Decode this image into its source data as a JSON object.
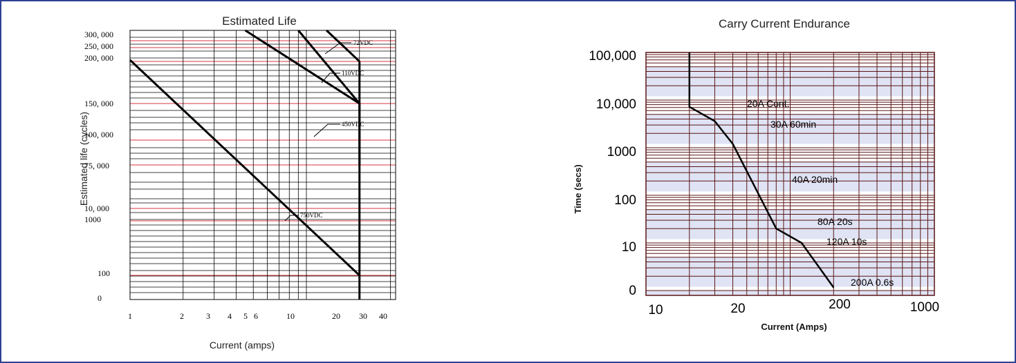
{
  "colors": {
    "frame": "#2e3f93",
    "grid_black": "#000000",
    "grid_red": "#d9343f",
    "grid_dark": "#5a1515",
    "band": "#dfe3f4",
    "curve": "#000000"
  },
  "chart_data": [
    {
      "type": "line",
      "title": "Estimated Life",
      "xlabel": "Current (amps)",
      "ylabel": "Estimated life (cycles)",
      "x_scale": "log",
      "xlim": [
        1,
        50
      ],
      "x_ticks": [
        "1",
        "2",
        "3",
        "4",
        "5",
        "6",
        "10",
        "20",
        "30",
        "40"
      ],
      "y_ticks": [
        "300, 000",
        "250, 000",
        "200, 000",
        "150, 000",
        "100, 000",
        "75, 000",
        "10, 000",
        "1000",
        "100",
        "0"
      ],
      "grid": true,
      "series": [
        {
          "name": "72VDC",
          "x": [
            13,
            20,
            20
          ],
          "y": [
            "300, 000",
            "250, 000",
            "200, 000"
          ]
        },
        {
          "name": "110VDC",
          "x": [
            4.5,
            20,
            20
          ],
          "y": [
            "300, 000",
            "150, 000",
            "75, 000"
          ]
        },
        {
          "name": "450VDC",
          "x": [
            9,
            20,
            20
          ],
          "y": [
            "300, 000",
            "150, 000",
            "75, 000"
          ]
        },
        {
          "name": "750VDC",
          "x": [
            1,
            20,
            20
          ],
          "y": [
            "200, 000",
            "100",
            "0"
          ]
        }
      ]
    },
    {
      "type": "line",
      "title": "Carry Current Endurance",
      "xlabel": "Current (Amps)",
      "ylabel": "Time (secs)",
      "x_scale": "log",
      "y_scale": "log",
      "xlim": [
        10,
        1000
      ],
      "x_ticks": [
        "10",
        "20",
        "200",
        "1000"
      ],
      "y_ticks": [
        "100,000",
        "10,000",
        "1000",
        "100",
        "10",
        "0"
      ],
      "grid": true,
      "series": [
        {
          "name": "",
          "x": [
            20,
            20,
            20,
            30,
            40,
            80,
            120,
            200
          ],
          "y": [
            100000,
            10000,
            7200,
            3600,
            1200,
            20,
            10,
            0.6
          ]
        }
      ],
      "annotations": [
        "20A Cont.",
        "30A 60min",
        "40A 20min",
        "80A 20s",
        "120A 10s",
        "200A 0.6s"
      ]
    }
  ]
}
